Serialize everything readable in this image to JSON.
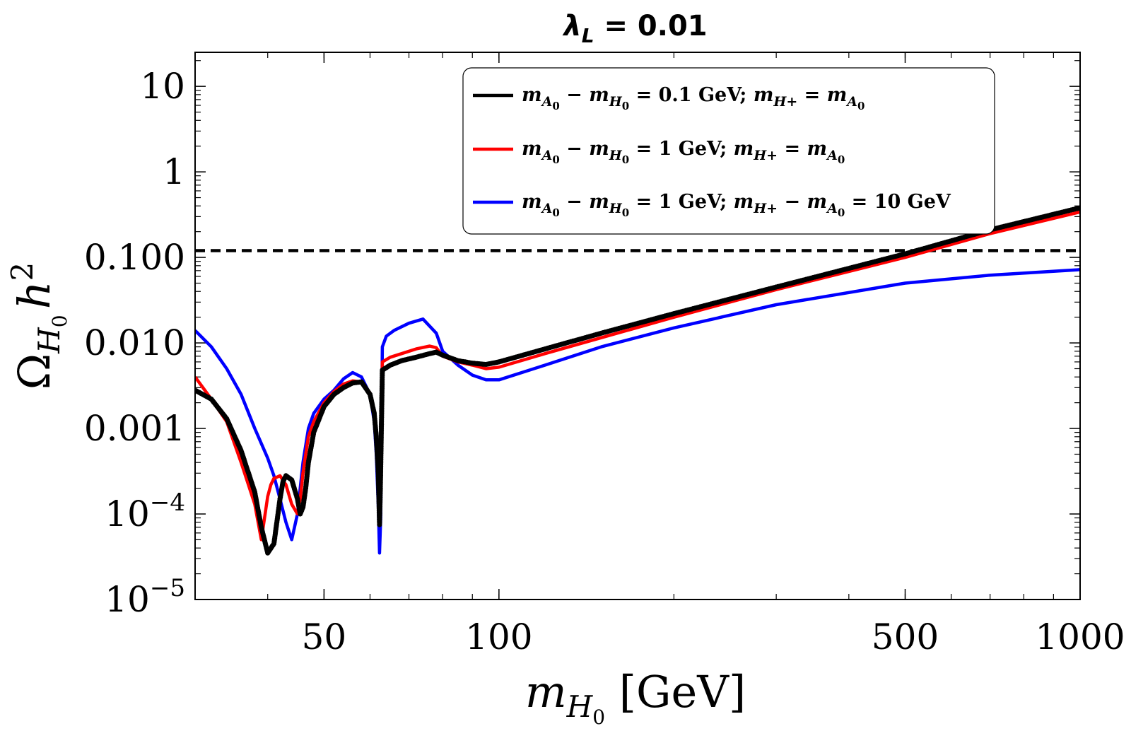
{
  "chart_data": {
    "type": "line",
    "title": "λL = 0.01",
    "title_parts": {
      "main": "λ",
      "sub": "L",
      "rest": " = 0.01"
    },
    "xlabel": "mH0 [GeV]",
    "xlabel_parts": {
      "main": "m",
      "sub": "H",
      "subsub": "0",
      "rest": " [GeV]"
    },
    "ylabel": "ΩH0 h2",
    "ylabel_parts": {
      "main": "Ω",
      "sub": "H",
      "subsub": "0",
      "mid": "h",
      "sup": "2"
    },
    "x_scale": "log",
    "y_scale": "log",
    "xlim": [
      30,
      1000
    ],
    "ylim": [
      1e-05,
      25
    ],
    "x_ticks": [
      {
        "value": 50,
        "label": "50"
      },
      {
        "value": 100,
        "label": "100"
      },
      {
        "value": 500,
        "label": "500"
      },
      {
        "value": 1000,
        "label": "1000"
      }
    ],
    "y_ticks": [
      {
        "value": 1e-05,
        "base": "10",
        "exp": "−5"
      },
      {
        "value": 0.0001,
        "base": "10",
        "exp": "−4"
      },
      {
        "value": 0.001,
        "label": "0.001"
      },
      {
        "value": 0.01,
        "label": "0.010"
      },
      {
        "value": 0.1,
        "label": "0.100"
      },
      {
        "value": 1,
        "label": "1"
      },
      {
        "value": 10,
        "label": "10"
      }
    ],
    "reference_line": {
      "y": 0.12,
      "style": "dashed",
      "color": "#000000"
    },
    "legend_position": "top-right",
    "legend": [
      {
        "color": "#000000",
        "series_index": 0,
        "parts": [
          "m",
          "A",
          "0",
          " − ",
          "m",
          "H",
          "0",
          " = 0.1 GeV; ",
          "m",
          "H+",
          "",
          " = ",
          "m",
          "A",
          "0",
          ""
        ]
      },
      {
        "color": "#ff0000",
        "series_index": 1,
        "parts": [
          "m",
          "A",
          "0",
          " − ",
          "m",
          "H",
          "0",
          " = 1 GeV; ",
          "m",
          "H+",
          "",
          " = ",
          "m",
          "A",
          "0",
          ""
        ]
      },
      {
        "color": "#0000ff",
        "series_index": 2,
        "parts": [
          "m",
          "A",
          "0",
          " − ",
          "m",
          "H",
          "0",
          " = 1 GeV; ",
          "m",
          "H+",
          "",
          " − ",
          "m",
          "A",
          "0",
          " = 10 GeV"
        ]
      }
    ],
    "series": [
      {
        "name": "mA0 − mH0 = 0.1 GeV; mH+ = mA0",
        "color": "#000000",
        "style": "dots",
        "x": [
          30,
          32,
          34,
          36,
          38,
          39,
          40,
          41,
          42,
          42.5,
          43,
          44,
          45,
          45.5,
          46,
          46.5,
          47,
          48,
          50,
          52,
          54,
          56,
          58,
          60,
          61,
          61.5,
          62,
          62.3,
          62.5,
          63,
          65,
          68,
          72,
          76,
          78,
          80,
          85,
          90,
          95,
          100,
          120,
          150,
          200,
          300,
          500,
          700,
          1000
        ],
        "y": [
          0.0028,
          0.0022,
          0.0013,
          0.00055,
          0.00018,
          7e-05,
          3.5e-05,
          4.5e-05,
          0.00015,
          0.00024,
          0.00028,
          0.00025,
          0.00015,
          0.0001,
          0.00012,
          0.0002,
          0.0004,
          0.0009,
          0.0018,
          0.0025,
          0.003,
          0.0034,
          0.0035,
          0.0025,
          0.0015,
          0.0008,
          0.0003,
          7.5e-05,
          0.0002,
          0.0048,
          0.0055,
          0.0062,
          0.0068,
          0.0075,
          0.0078,
          0.0072,
          0.0062,
          0.0058,
          0.0056,
          0.006,
          0.0085,
          0.013,
          0.022,
          0.045,
          0.11,
          0.21,
          0.38
        ]
      },
      {
        "name": "mA0 − mH0 = 1 GeV; mH+ = mA0",
        "color": "#ff0000",
        "style": "line",
        "x": [
          30,
          32,
          34,
          36,
          38,
          39,
          40,
          40.5,
          41,
          42,
          43,
          44,
          45,
          45.5,
          46,
          46.5,
          47,
          48,
          50,
          52,
          54,
          56,
          58,
          60,
          61,
          61.5,
          62,
          62.3,
          62.5,
          63,
          65,
          68,
          72,
          76,
          78,
          80,
          85,
          90,
          95,
          100,
          120,
          150,
          200,
          300,
          500,
          700,
          1000
        ],
        "y": [
          0.004,
          0.0022,
          0.0012,
          0.0004,
          0.00013,
          5e-05,
          0.00016,
          0.00022,
          0.00026,
          0.00028,
          0.00022,
          0.00013,
          0.0001,
          0.00015,
          0.0003,
          0.0005,
          0.0008,
          0.0012,
          0.002,
          0.0027,
          0.0033,
          0.0036,
          0.0035,
          0.0026,
          0.0015,
          0.0007,
          0.00025,
          0.0001,
          0.0003,
          0.006,
          0.0068,
          0.0075,
          0.0085,
          0.0092,
          0.0088,
          0.007,
          0.006,
          0.0055,
          0.005,
          0.0052,
          0.0075,
          0.0115,
          0.02,
          0.042,
          0.1,
          0.19,
          0.34
        ]
      },
      {
        "name": "mA0 − mH0 = 1 GeV; mH+ − mA0 = 10 GeV",
        "color": "#0000ff",
        "style": "line",
        "x": [
          30,
          32,
          34,
          36,
          38,
          40,
          41,
          42,
          43,
          44,
          45,
          46,
          47,
          48,
          50,
          52,
          54,
          56,
          58,
          60,
          61,
          61.5,
          62,
          62.3,
          62.6,
          63,
          64,
          66,
          70,
          74,
          78,
          80,
          85,
          90,
          95,
          100,
          120,
          150,
          200,
          300,
          500,
          700,
          1000
        ],
        "y": [
          0.014,
          0.009,
          0.005,
          0.0025,
          0.001,
          0.00045,
          0.00028,
          0.00015,
          8e-05,
          5e-05,
          0.0001,
          0.0004,
          0.001,
          0.0015,
          0.0022,
          0.0028,
          0.0038,
          0.0045,
          0.004,
          0.0025,
          0.0012,
          0.0005,
          0.00012,
          3.5e-05,
          9e-05,
          0.009,
          0.012,
          0.014,
          0.017,
          0.019,
          0.013,
          0.008,
          0.0055,
          0.0042,
          0.0037,
          0.0037,
          0.0055,
          0.009,
          0.015,
          0.028,
          0.05,
          0.062,
          0.072
        ]
      }
    ]
  }
}
